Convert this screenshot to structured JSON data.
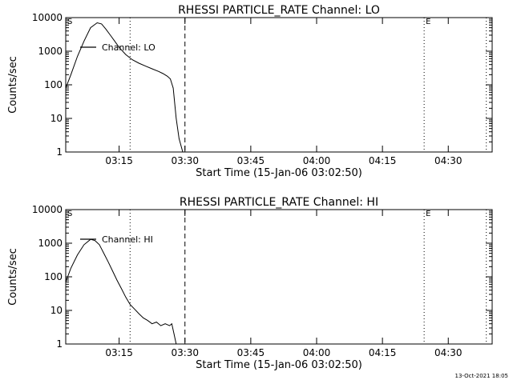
{
  "footer": {
    "timestamp": "13-Oct-2021 18:05"
  },
  "chart_data": [
    {
      "type": "line",
      "title": "RHESSI PARTICLE_RATE Channel: LO",
      "xlabel": "Start Time (15-Jan-06 03:02:50)",
      "ylabel": "Counts/sec",
      "yscale": "log",
      "ylim": [
        1,
        10000
      ],
      "xlim": [
        "03:02:50",
        "04:40:00"
      ],
      "x_ticks": [
        "03:15",
        "03:30",
        "03:45",
        "04:00",
        "04:15",
        "04:30"
      ],
      "y_ticks": [
        "1",
        "10",
        "100",
        "1000",
        "10000"
      ],
      "legend": "Channel: LO",
      "legend_position": "upper-left",
      "markers": [
        {
          "time": "03:02:50",
          "label": "S",
          "style": "dotted"
        },
        {
          "time": "03:17:30",
          "label": "",
          "style": "dotted"
        },
        {
          "time": "03:30:00",
          "label": "",
          "style": "dashed"
        },
        {
          "time": "04:24:30",
          "label": "E",
          "style": "dotted"
        },
        {
          "time": "04:38:40",
          "label": "",
          "style": "dotted"
        }
      ],
      "series": [
        {
          "name": "Channel: LO",
          "x": [
            "03:02:50",
            "03:04:00",
            "03:05:30",
            "03:07:00",
            "03:08:30",
            "03:10:00",
            "03:11:00",
            "03:12:00",
            "03:13:00",
            "03:14:00",
            "03:15:00",
            "03:16:30",
            "03:18:00",
            "03:19:30",
            "03:21:00",
            "03:22:30",
            "03:24:00",
            "03:25:00",
            "03:26:00",
            "03:26:40",
            "03:27:20",
            "03:28:00",
            "03:28:40",
            "03:29:30"
          ],
          "y": [
            80,
            200,
            700,
            2000,
            5000,
            7000,
            6500,
            4500,
            3000,
            2000,
            1300,
            800,
            560,
            440,
            360,
            300,
            250,
            215,
            180,
            150,
            80,
            10,
            2.5,
            1
          ]
        }
      ]
    },
    {
      "type": "line",
      "title": "RHESSI PARTICLE_RATE Channel: HI",
      "xlabel": "Start Time (15-Jan-06 03:02:50)",
      "ylabel": "Counts/sec",
      "yscale": "log",
      "ylim": [
        1,
        10000
      ],
      "xlim": [
        "03:02:50",
        "04:40:00"
      ],
      "x_ticks": [
        "03:15",
        "03:30",
        "03:45",
        "04:00",
        "04:15",
        "04:30"
      ],
      "y_ticks": [
        "1",
        "10",
        "100",
        "1000",
        "10000"
      ],
      "legend": "Channel: HI",
      "legend_position": "upper-left",
      "markers": [
        {
          "time": "03:02:50",
          "label": "S",
          "style": "dotted"
        },
        {
          "time": "03:17:30",
          "label": "",
          "style": "dotted"
        },
        {
          "time": "03:30:00",
          "label": "",
          "style": "dashed"
        },
        {
          "time": "04:24:30",
          "label": "E",
          "style": "dotted"
        },
        {
          "time": "04:38:40",
          "label": "",
          "style": "dotted"
        }
      ],
      "series": [
        {
          "name": "Channel: HI",
          "x": [
            "03:02:50",
            "03:04:00",
            "03:05:30",
            "03:07:00",
            "03:08:30",
            "03:09:30",
            "03:10:30",
            "03:11:30",
            "03:12:30",
            "03:13:30",
            "03:14:30",
            "03:15:30",
            "03:16:30",
            "03:17:30",
            "03:18:30",
            "03:19:30",
            "03:20:30",
            "03:21:30",
            "03:22:30",
            "03:23:30",
            "03:24:30",
            "03:25:30",
            "03:26:30",
            "03:27:00",
            "03:27:30",
            "03:28:00"
          ],
          "y": [
            70,
            180,
            450,
            900,
            1300,
            1200,
            900,
            500,
            280,
            150,
            80,
            45,
            25,
            15,
            11,
            8,
            6,
            5,
            4,
            4.5,
            3.5,
            4,
            3.5,
            4,
            2,
            1
          ]
        }
      ]
    }
  ]
}
